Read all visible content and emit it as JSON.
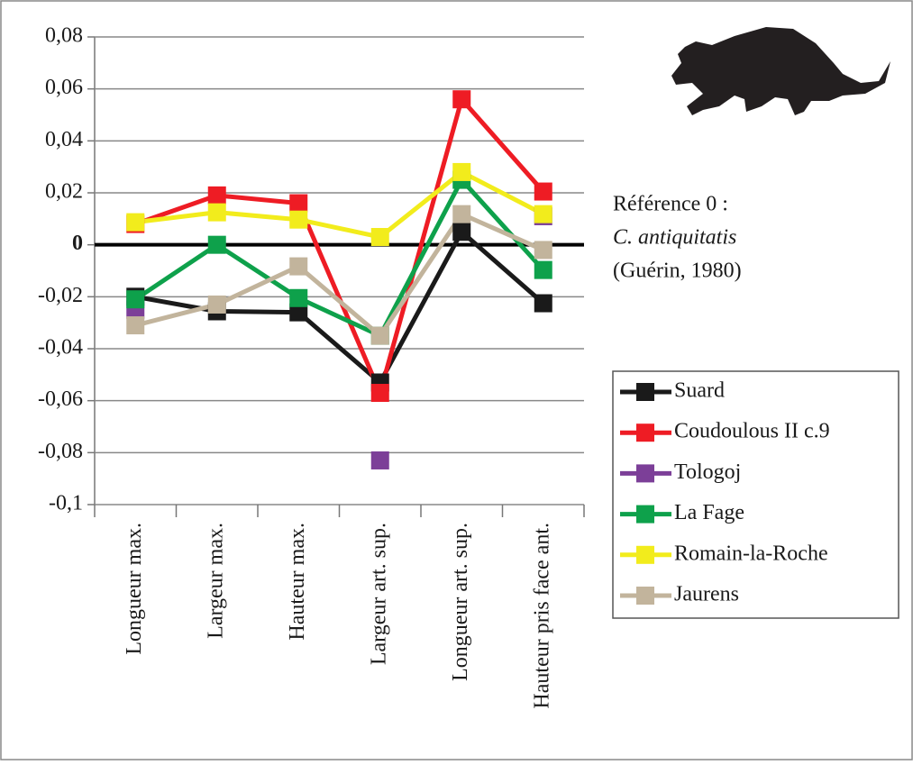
{
  "chart_data": {
    "type": "line",
    "categories": [
      "Longueur max.",
      "Largeur max.",
      "Hauteur max.",
      "Largeur art. sup.",
      "Longueur art. sup.",
      "Hauteur pris face ant."
    ],
    "series": [
      {
        "name": "Suard",
        "color": "#1a1a1a",
        "values": [
          -0.02,
          -0.0256,
          -0.026,
          -0.053,
          0.005,
          -0.0225
        ]
      },
      {
        "name": "Coudoulous II c.9",
        "color": "#ee1c24",
        "values": [
          0.008,
          0.019,
          0.016,
          -0.057,
          0.056,
          0.0205
        ]
      },
      {
        "name": "Tologoj",
        "color": "#7c3f98",
        "values": [
          -0.025,
          null,
          null,
          -0.083,
          null,
          0.011
        ]
      },
      {
        "name": "La Fage",
        "color": "#0ea14b",
        "values": [
          -0.021,
          0,
          -0.0205,
          -0.035,
          0.025,
          -0.0097
        ]
      },
      {
        "name": "Romain-la-Roche",
        "color": "#f2ec1c",
        "values": [
          0.0087,
          0.0125,
          0.0097,
          0.003,
          0.028,
          0.0118
        ]
      },
      {
        "name": "Jaurens",
        "color": "#c2b49c",
        "values": [
          -0.031,
          -0.023,
          -0.0083,
          -0.035,
          0.0118,
          -0.002
        ]
      }
    ],
    "ylim": [
      -0.1,
      0.08
    ],
    "yticks": [
      {
        "value": 0.08,
        "label": "0,08"
      },
      {
        "value": 0.06,
        "label": "0,06"
      },
      {
        "value": 0.04,
        "label": "0,04"
      },
      {
        "value": 0.02,
        "label": "0,02"
      },
      0,
      {
        "value": -0.02,
        "label": "-0,02"
      },
      {
        "value": -0.04,
        "label": "-0,04"
      },
      {
        "value": -0.06,
        "label": "-0,06"
      },
      {
        "value": -0.08,
        "label": "-0,08"
      },
      {
        "value": -0.1,
        "label": "-0,1"
      }
    ],
    "grid": true,
    "legend": "right",
    "annotations": [
      "Référence 0 :",
      "C. antiquitatis",
      "(Guérin, 1980)"
    ]
  }
}
